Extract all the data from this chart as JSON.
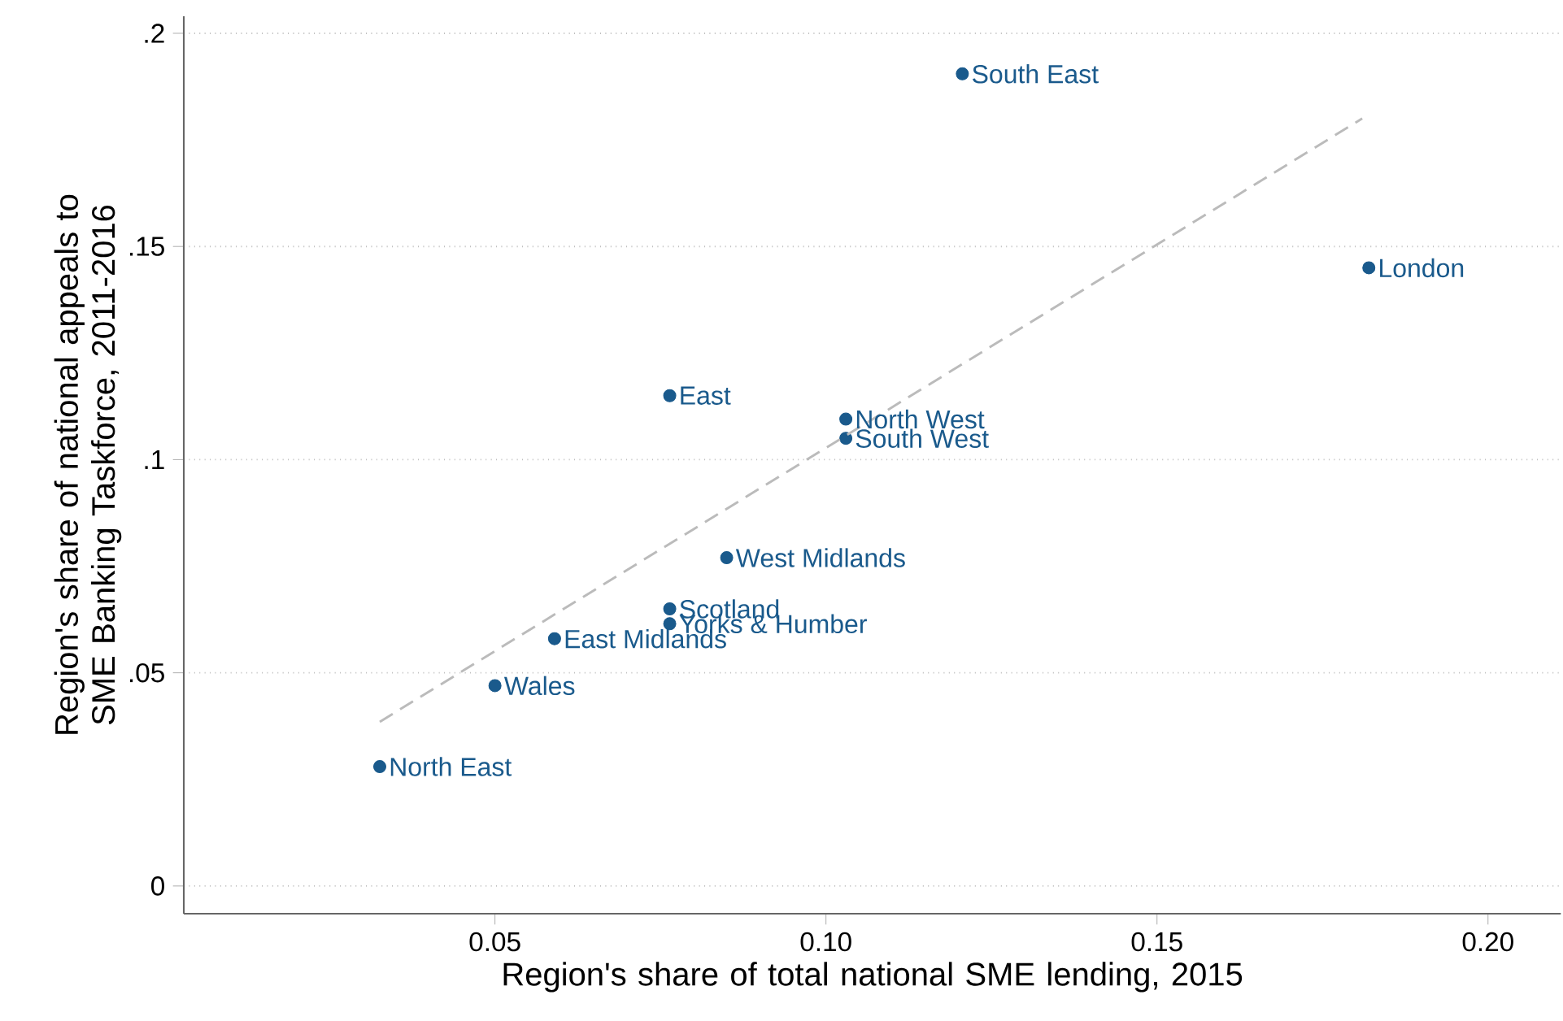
{
  "chart_data": {
    "type": "scatter",
    "xlabel": "Region's share of total national SME lending, 2015",
    "ylabel": "Region's share of national appeals to SME Banking Taskforce, 2011-2016",
    "xlim": [
      0.003,
      0.211
    ],
    "ylim": [
      -0.0065,
      0.204
    ],
    "xticks": [
      {
        "value": 0.05,
        "label": "0.05"
      },
      {
        "value": 0.1,
        "label": "0.10"
      },
      {
        "value": 0.15,
        "label": "0.15"
      },
      {
        "value": 0.2,
        "label": "0.20"
      }
    ],
    "yticks": [
      0,
      {
        "value": 0.05,
        "label": ".05"
      },
      {
        "value": 0.1,
        "label": ".1"
      },
      {
        "value": 0.15,
        "label": ".15"
      },
      {
        "value": 0.2,
        "label": ".2"
      }
    ],
    "grid": "y",
    "series": [
      {
        "color": "#1a5a8c",
        "marker": "circle",
        "x": [
          0.1206,
          0.182,
          0.0764,
          0.103,
          0.103,
          0.085,
          0.0764,
          0.0764,
          0.059,
          0.05,
          0.0326
        ],
        "values": [
          0.1905,
          0.145,
          0.115,
          0.1095,
          0.105,
          0.077,
          0.065,
          0.0615,
          0.058,
          0.047,
          0.028
        ]
      },
      {
        "type": "line",
        "color": "#bbbbbb",
        "line_style": "dashed",
        "marker": "none",
        "x": [
          0.0326,
          0.181
        ],
        "values": [
          0.0385,
          0.18
        ]
      }
    ],
    "annotations": [
      {
        "text": "South East",
        "x": 0.1206,
        "y": 0.1905
      },
      {
        "text": "London",
        "x": 0.182,
        "y": 0.145
      },
      {
        "text": "East",
        "x": 0.0764,
        "y": 0.115
      },
      {
        "text": "North West",
        "x": 0.103,
        "y": 0.1095
      },
      {
        "text": "South West",
        "x": 0.103,
        "y": 0.105
      },
      {
        "text": "West Midlands",
        "x": 0.085,
        "y": 0.077
      },
      {
        "text": "Scotland",
        "x": 0.0764,
        "y": 0.065
      },
      {
        "text": "Yorks & Humber",
        "x": 0.0764,
        "y": 0.0615
      },
      {
        "text": "East Midlands",
        "x": 0.059,
        "y": 0.058
      },
      {
        "text": "Wales",
        "x": 0.05,
        "y": 0.047
      },
      {
        "text": "North East",
        "x": 0.0326,
        "y": 0.028
      }
    ]
  }
}
